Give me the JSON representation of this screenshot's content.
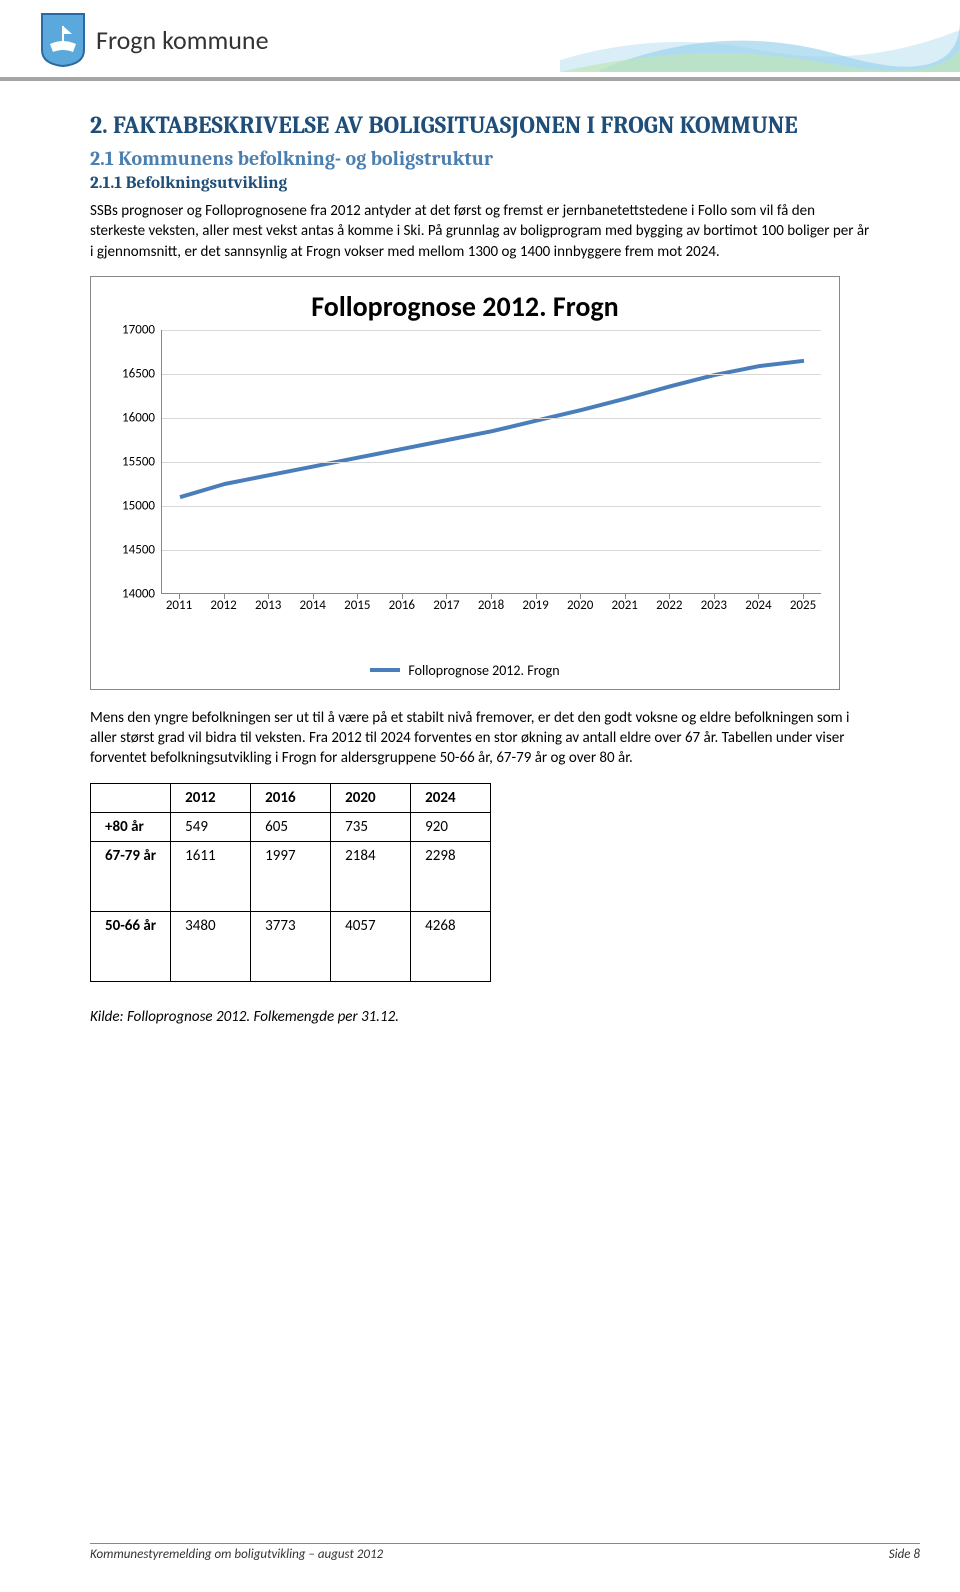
{
  "header": {
    "org_name": "Frogn kommune",
    "logo_colors": {
      "shield_fill": "#5aa8dc",
      "shield_stroke": "#2b6aa0",
      "boat_fill": "#ffffff"
    },
    "wave_colors": [
      "#bfe5b8",
      "#9cd3ec",
      "#cfeaf5"
    ]
  },
  "section": {
    "title": "2. FAKTABESKRIVELSE AV BOLIGSITUASJONEN I FROGN KOMMUNE",
    "subtitle": "2.1 Kommunens befolkning- og boligstruktur",
    "subsubtitle": "2.1.1 Befolkningsutvikling",
    "para1": "SSBs prognoser og Folloprognosene fra 2012 antyder at det først og fremst er jernbanetettstedene i Follo som vil få den sterkeste veksten, aller mest vekst antas å komme i Ski. På grunnlag av boligprogram med bygging av bortimot 100 boliger per år i gjennomsnitt, er det sannsynlig at Frogn vokser med mellom 1300 og 1400 innbyggere frem mot 2024.",
    "para2": "Mens den yngre befolkningen ser ut til å være på et stabilt nivå fremover, er det den godt voksne og eldre befolkningen som i aller størst grad vil bidra til veksten. Fra 2012 til 2024 forventes en stor økning av antall eldre over 67 år. Tabellen under viser forventet befolkningsutvikling i Frogn for aldersgruppene 50-66 år, 67-79 år og over 80 år."
  },
  "chart": {
    "title": "Folloprognose 2012. Frogn",
    "type": "line",
    "legend_label": "Folloprognose 2012. Frogn",
    "line_color": "#4a7ebb",
    "line_width": 4,
    "grid_color": "#d9d9d9",
    "axis_color": "#888888",
    "background_color": "#ffffff",
    "ylim": [
      14000,
      17000
    ],
    "ytick_step": 500,
    "yticks": [
      "14000",
      "14500",
      "15000",
      "15500",
      "16000",
      "16500",
      "17000"
    ],
    "years": [
      "2011",
      "2012",
      "2013",
      "2014",
      "2015",
      "2016",
      "2017",
      "2018",
      "2019",
      "2020",
      "2021",
      "2022",
      "2023",
      "2024",
      "2025"
    ],
    "values": [
      15100,
      15250,
      15350,
      15450,
      15550,
      15650,
      15750,
      15850,
      15970,
      16090,
      16220,
      16360,
      16490,
      16590,
      16650
    ]
  },
  "table": {
    "columns": [
      "",
      "2012",
      "2016",
      "2020",
      "2024"
    ],
    "rows": [
      {
        "label": "+80 år",
        "cells": [
          "549",
          "605",
          "735",
          "920"
        ],
        "tall": false
      },
      {
        "label": "67-79 år",
        "cells": [
          "1611",
          "1997",
          "2184",
          "2298"
        ],
        "tall": true
      },
      {
        "label": "50-66 år",
        "cells": [
          "3480",
          "3773",
          "4057",
          "4268"
        ],
        "tall": true
      }
    ]
  },
  "source_note": "Kilde: Folloprognose 2012. Folkemengde per 31.12.",
  "footer": {
    "left": "Kommunestyremelding om boligutvikling – august 2012",
    "right": "Side 8"
  }
}
